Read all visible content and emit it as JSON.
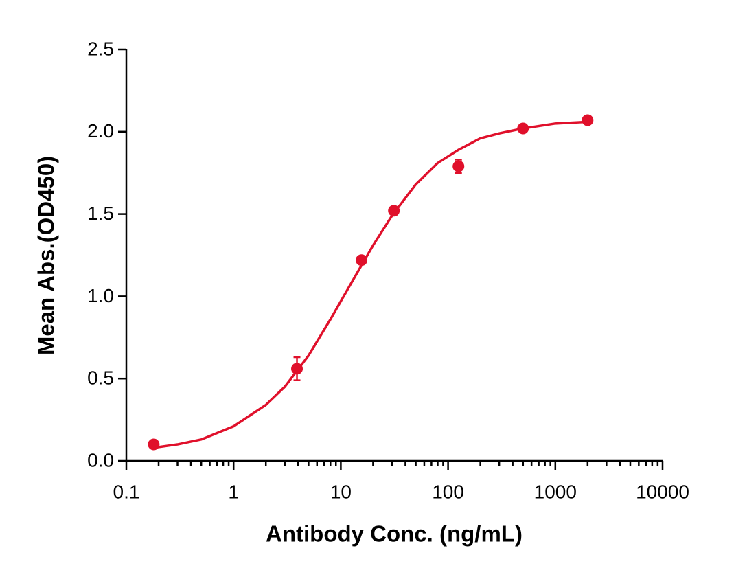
{
  "chart_data": {
    "type": "scatter",
    "x_label": "Antibody Conc. (ng/mL)",
    "y_label": "Mean Abs.(OD450)",
    "log_x": true,
    "xlim": [
      0.1,
      10000
    ],
    "xticks": [
      0.1,
      1,
      10,
      100,
      1000,
      10000
    ],
    "ylim": [
      0,
      2.5
    ],
    "yticks": [
      {
        "value": 0,
        "label": "0.0"
      },
      0.5,
      {
        "value": 1,
        "label": "1.0"
      },
      1.5,
      {
        "value": 2,
        "label": "2.0"
      },
      2.5
    ],
    "series": [
      {
        "color": "#e0102b",
        "x": [
          0.18,
          3.9,
          15.6,
          31.25,
          125,
          500,
          2000
        ],
        "values": [
          0.1,
          0.56,
          1.22,
          1.52,
          1.79,
          2.02,
          2.07
        ],
        "errors": [
          0.01,
          0.07,
          0.02,
          0.02,
          0.04,
          0.01,
          0.01
        ]
      },
      {
        "type": "line",
        "color": "#e0102b",
        "x": [
          0.18,
          0.3,
          0.5,
          1,
          2,
          3,
          5,
          8,
          12,
          20,
          30,
          50,
          80,
          125,
          200,
          300,
          500,
          1000,
          2000
        ],
        "values": [
          0.08,
          0.1,
          0.13,
          0.21,
          0.34,
          0.45,
          0.64,
          0.86,
          1.06,
          1.31,
          1.49,
          1.68,
          1.81,
          1.89,
          1.96,
          1.99,
          2.02,
          2.05,
          2.06
        ]
      }
    ]
  }
}
